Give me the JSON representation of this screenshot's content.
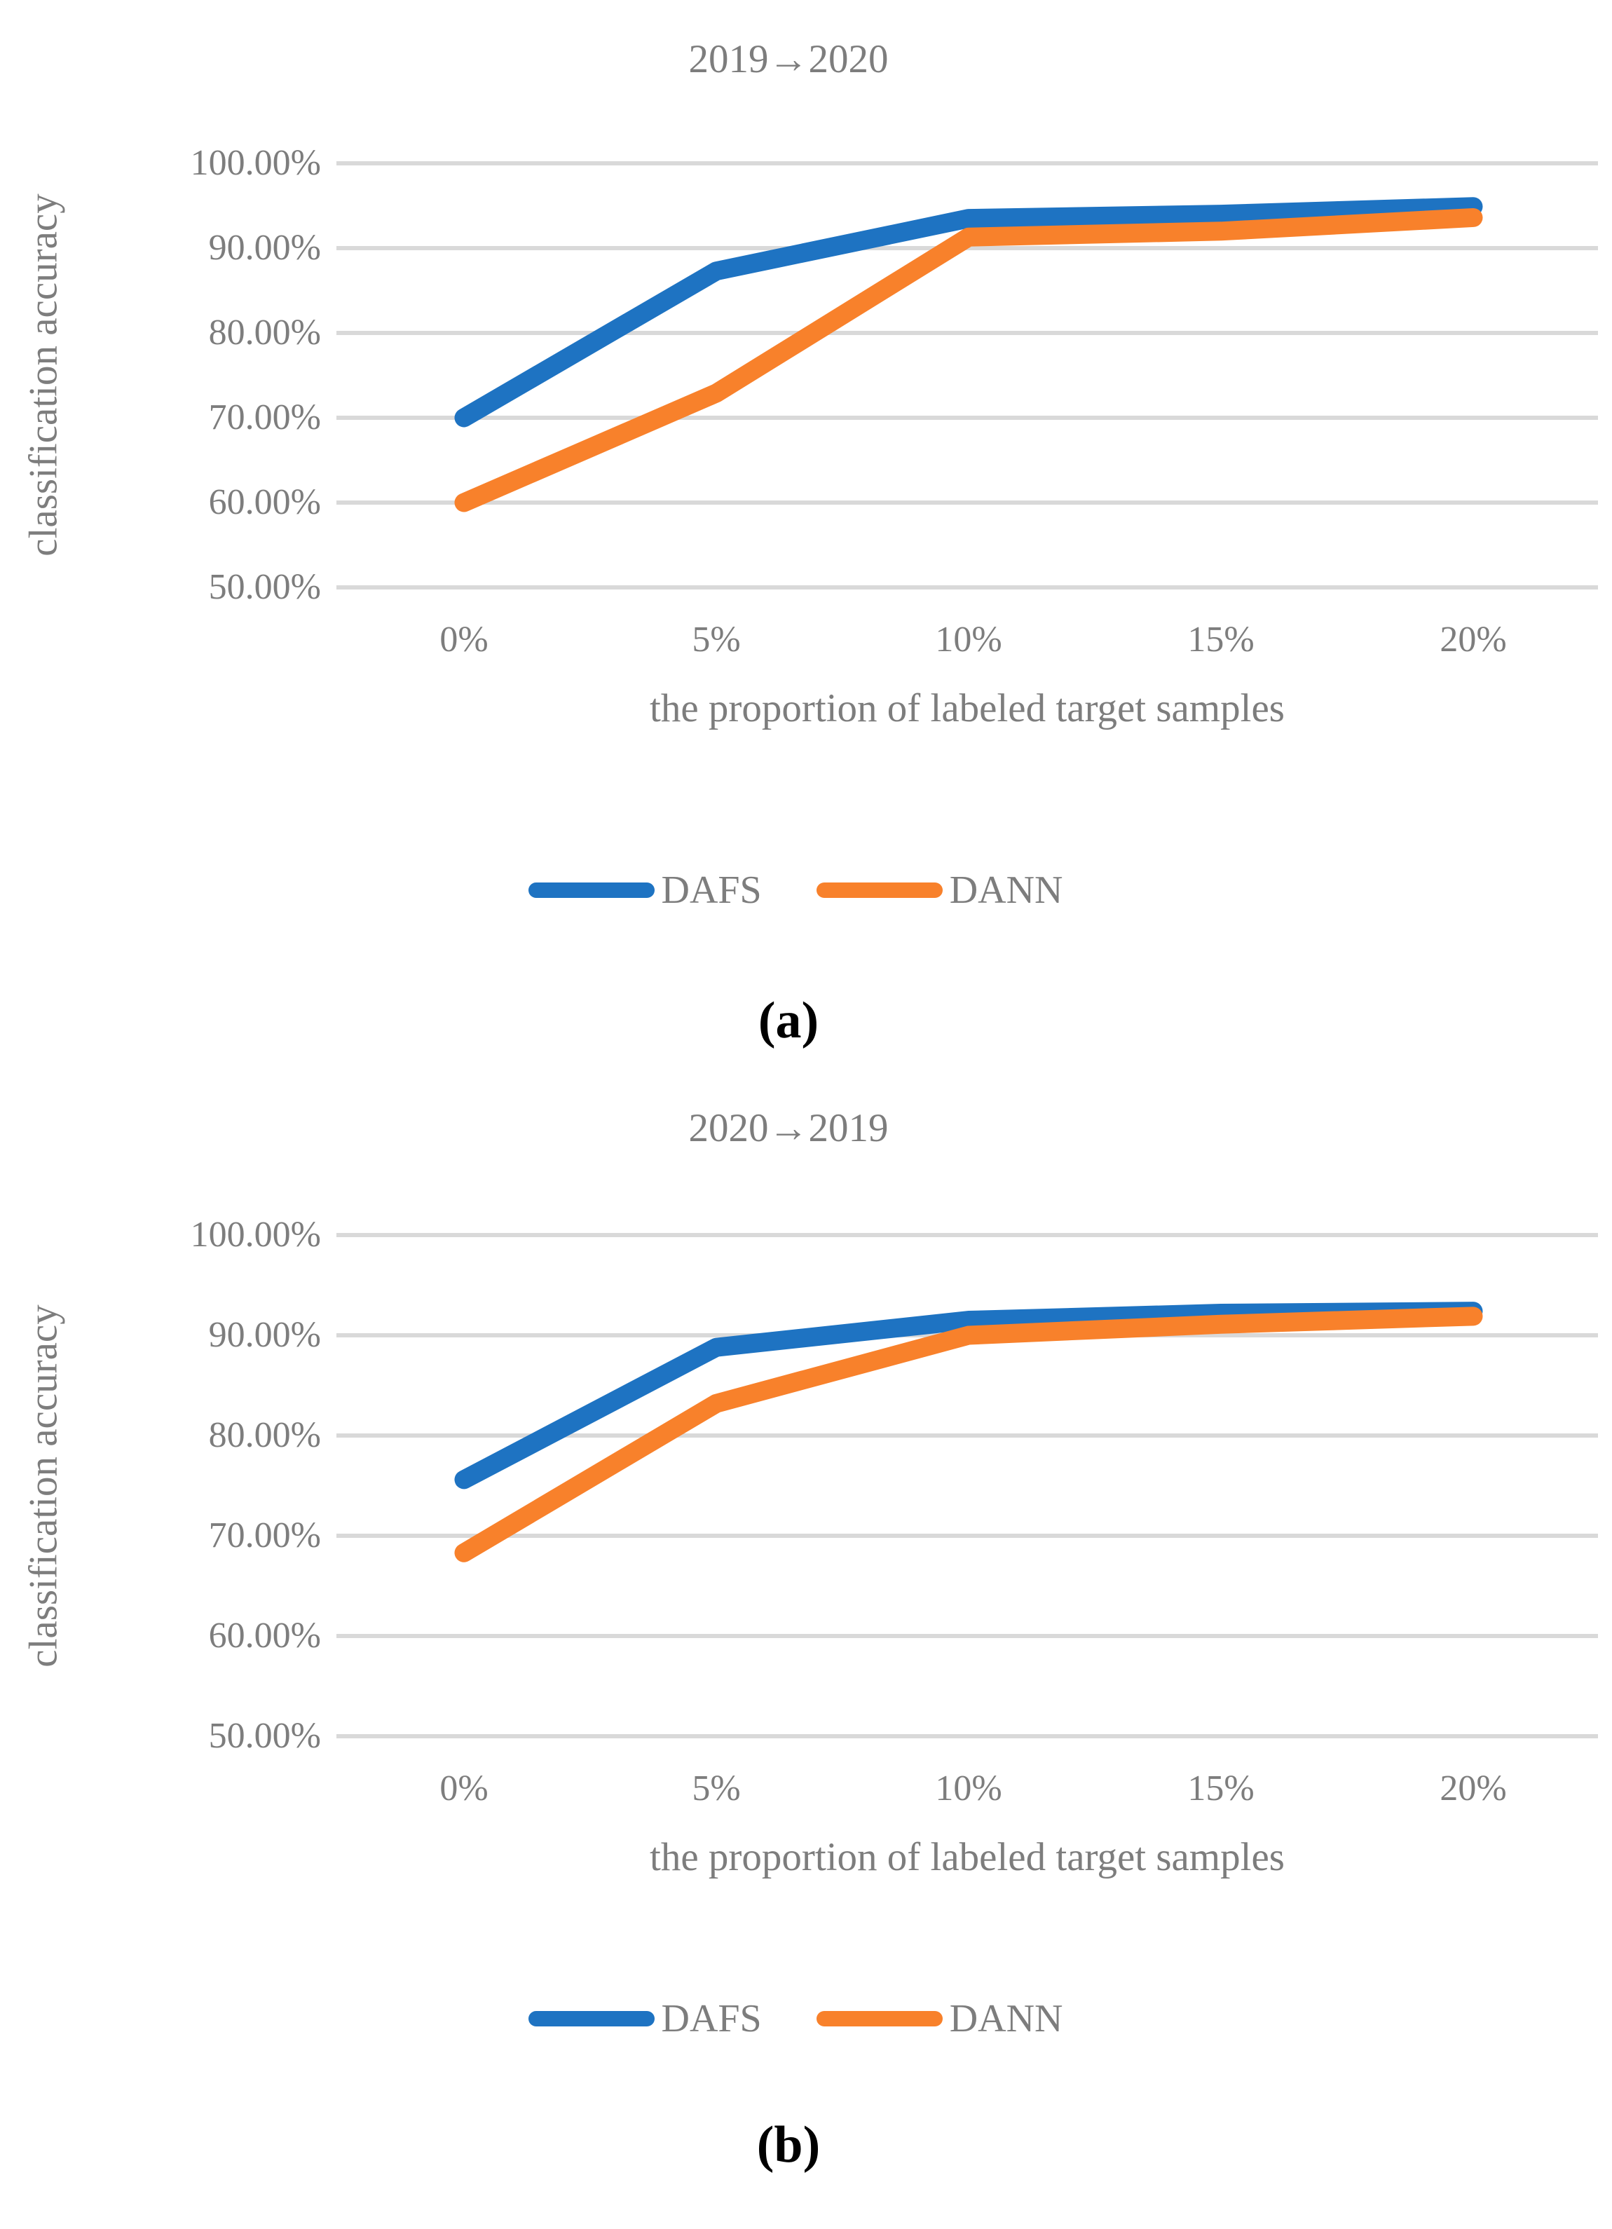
{
  "chart_data": [
    {
      "type": "line",
      "panel_label": "(a)",
      "title": "2019→2020",
      "xlabel": "the proportion of labeled target samples",
      "ylabel": "classification accuracy",
      "categories": [
        "0%",
        "5%",
        "10%",
        "15%",
        "20%"
      ],
      "y_tick_labels": [
        "100.00%",
        "90.00%",
        "80.00%",
        "70.00%",
        "60.00%",
        "50.00%"
      ],
      "ylim": [
        50,
        100
      ],
      "grid": true,
      "legend_position": "bottom",
      "series": [
        {
          "name": "DAFS",
          "color": "#1E73C2",
          "values_pct": [
            70.0,
            87.3,
            93.5,
            94.0,
            94.9
          ]
        },
        {
          "name": "DANN",
          "color": "#F8812B",
          "values_pct": [
            60.0,
            72.9,
            91.3,
            92.0,
            93.6
          ]
        }
      ]
    },
    {
      "type": "line",
      "panel_label": "(b)",
      "title": "2020→2019",
      "xlabel": "the proportion of labeled target samples",
      "ylabel": "classification accuracy",
      "categories": [
        "0%",
        "5%",
        "10%",
        "15%",
        "20%"
      ],
      "y_tick_labels": [
        "100.00%",
        "90.00%",
        "80.00%",
        "70.00%",
        "60.00%",
        "50.00%"
      ],
      "ylim": [
        50,
        100
      ],
      "grid": true,
      "legend_position": "bottom",
      "series": [
        {
          "name": "DAFS",
          "color": "#1E73C2",
          "values_pct": [
            75.6,
            88.8,
            91.5,
            92.2,
            92.4
          ]
        },
        {
          "name": "DANN",
          "color": "#F8812B",
          "values_pct": [
            68.3,
            83.2,
            90.0,
            91.1,
            91.9
          ]
        }
      ]
    }
  ],
  "styles": {
    "gridline_color": "#D9D9D9",
    "axis_text_color": "#7D7D7D",
    "panel_label_color": "#000000",
    "background": "#FFFFFF"
  }
}
